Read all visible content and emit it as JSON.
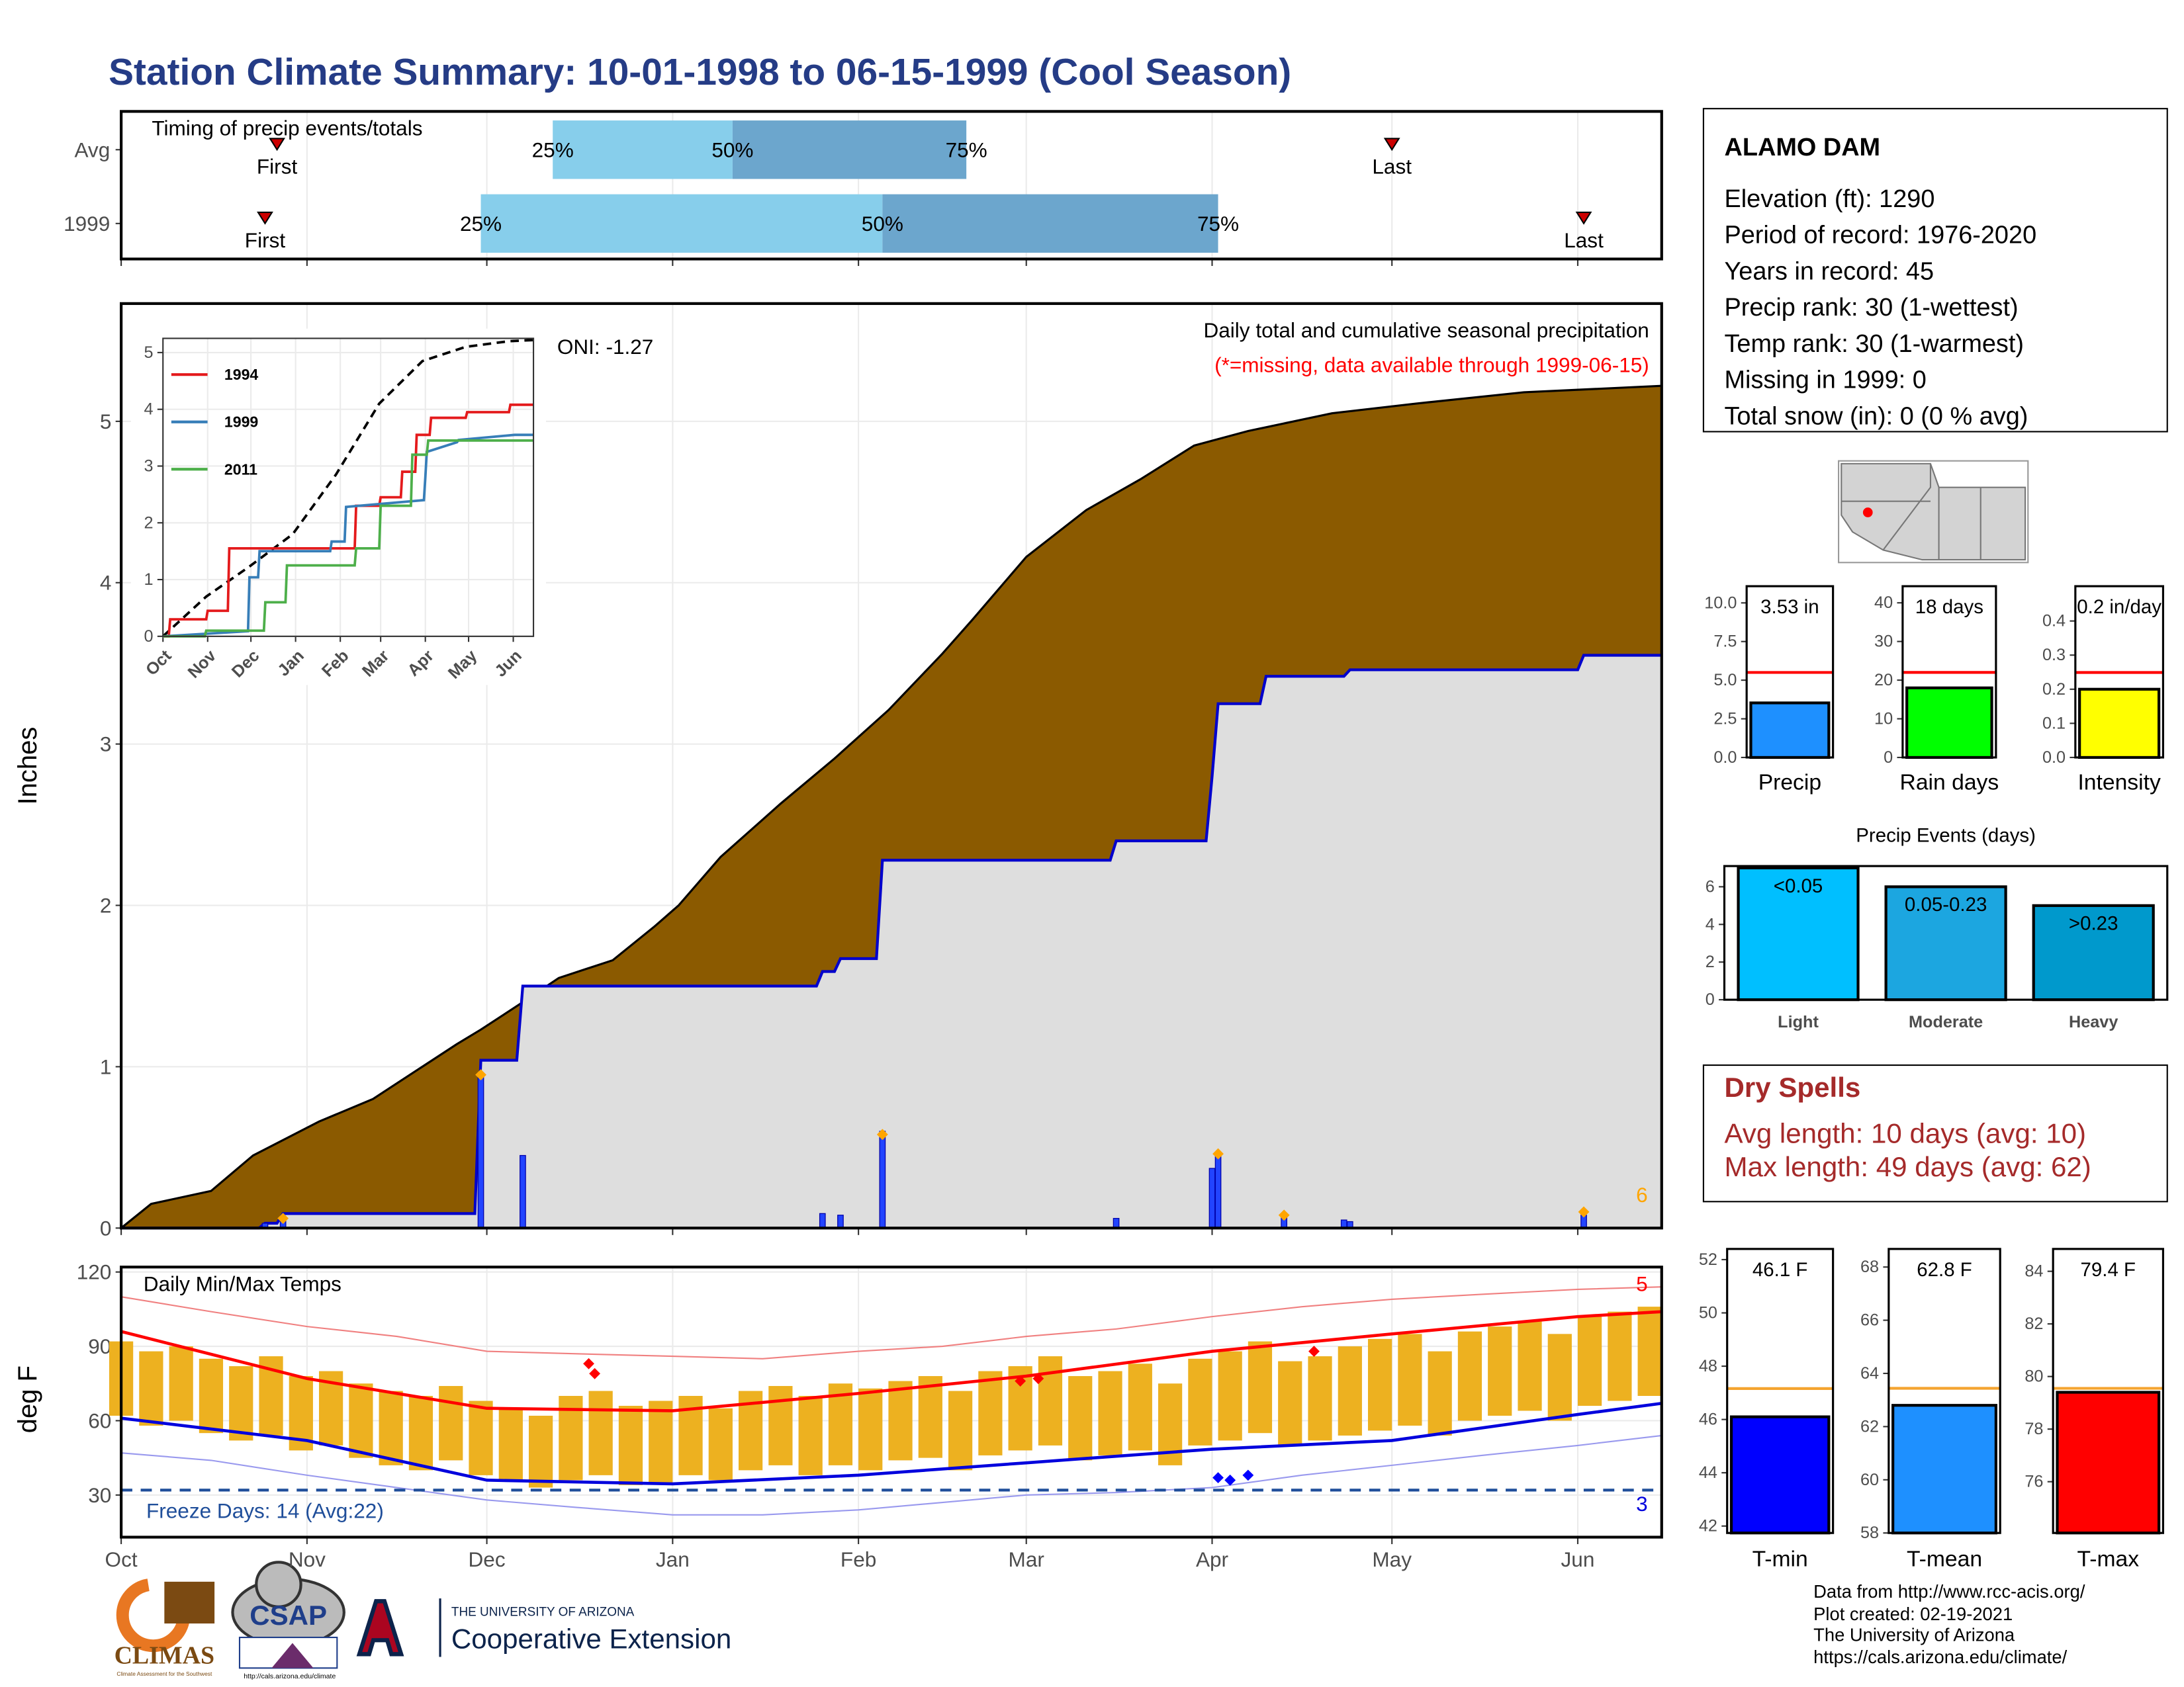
{
  "title": "Station Climate Summary: 10-01-1998 to 06-15-1999 (Cool Season)",
  "chart_data": [
    {
      "type": "timing",
      "title": "Timing of precip events/totals",
      "categories": [
        "Avg",
        "1999"
      ],
      "first": [
        26,
        24
      ],
      "q25": [
        72,
        60
      ],
      "q50": [
        102,
        127
      ],
      "q75": [
        141,
        183
      ],
      "last": [
        212,
        244
      ],
      "point_labels": {
        "first": "First",
        "q25": "25%",
        "q50": "50%",
        "q75": "75%",
        "last": "Last"
      },
      "colors": {
        "lower": "#87CEEB",
        "upper": "#6CA6CD",
        "marker": "#CC0000"
      },
      "xlim": [
        0,
        257
      ],
      "xticks": [
        0,
        31,
        61,
        92,
        123,
        151,
        182,
        212,
        243
      ],
      "grid": true
    },
    {
      "type": "area",
      "title": "Daily total and cumulative seasonal precipitation",
      "subtitle": "(*=missing, data available through 1999-06-15)",
      "annotation": "ONI: -1.27",
      "marker_count": 6,
      "y_label": "Inches",
      "xlim": [
        0,
        257
      ],
      "xticks": [
        0,
        31,
        61,
        92,
        123,
        151,
        182,
        212,
        243
      ],
      "ylim": [
        0,
        5.73
      ],
      "yticks": [
        0,
        1,
        2,
        3,
        4,
        5
      ],
      "grid": true,
      "series": [
        {
          "style": "area",
          "color": "#8B5A00",
          "x": [
            0,
            5,
            15,
            22,
            33,
            42,
            49,
            56,
            60,
            67,
            73,
            82,
            89,
            93,
            100,
            110,
            119,
            128,
            137,
            142,
            151,
            161,
            170,
            179,
            188,
            202,
            216,
            234,
            257
          ],
          "values": [
            0,
            0.15,
            0.23,
            0.45,
            0.66,
            0.8,
            0.97,
            1.14,
            1.23,
            1.4,
            1.55,
            1.66,
            1.87,
            2.0,
            2.3,
            2.63,
            2.91,
            3.21,
            3.56,
            3.77,
            4.16,
            4.45,
            4.64,
            4.85,
            4.94,
            5.05,
            5.11,
            5.18,
            5.22
          ]
        },
        {
          "style": "area_line",
          "color": "#0000CC",
          "fill": "#DEDEDE",
          "exceed_color": "#228B22",
          "x": [
            0,
            23,
            24,
            26,
            27,
            59,
            60,
            66,
            67,
            116,
            117,
            119,
            120,
            126,
            127,
            165,
            166,
            181,
            182,
            183,
            190,
            191,
            204,
            205,
            243,
            244,
            257
          ],
          "values": [
            0,
            0,
            0.03,
            0.03,
            0.09,
            0.09,
            1.04,
            1.04,
            1.5,
            1.5,
            1.59,
            1.59,
            1.67,
            1.67,
            2.28,
            2.28,
            2.4,
            2.4,
            2.8,
            3.25,
            3.25,
            3.42,
            3.42,
            3.46,
            3.46,
            3.55,
            3.55
          ]
        },
        {
          "style": "bars",
          "color": "#2244FF",
          "x": [
            24,
            27,
            60,
            67,
            117,
            120,
            127,
            166,
            182,
            183,
            194,
            204,
            205,
            244
          ],
          "values": [
            0.03,
            0.06,
            0.95,
            0.45,
            0.09,
            0.08,
            0.6,
            0.06,
            0.37,
            0.45,
            0.07,
            0.05,
            0.04,
            0.08
          ]
        },
        {
          "style": "markers",
          "color": "#FFA500",
          "x": [
            27,
            60,
            127,
            183,
            194,
            244
          ],
          "values": [
            0.06,
            0.95,
            0.58,
            0.46,
            0.08,
            0.1
          ]
        }
      ]
    },
    {
      "type": "line",
      "legend": "top-left",
      "xlim": [
        0,
        257
      ],
      "xticks": [
        {
          "value": 0,
          "label": "Oct"
        },
        {
          "value": 31,
          "label": "Nov"
        },
        {
          "value": 61,
          "label": "Dec"
        },
        {
          "value": 92,
          "label": "Jan"
        },
        {
          "value": 123,
          "label": "Feb"
        },
        {
          "value": 151,
          "label": "Mar"
        },
        {
          "value": 182,
          "label": "Apr"
        },
        {
          "value": 212,
          "label": "May"
        },
        {
          "value": 243,
          "label": "Jun"
        }
      ],
      "ylim": [
        0,
        5.25
      ],
      "yticks": [
        0,
        1,
        2,
        3,
        4,
        5
      ],
      "grid": true,
      "series": [
        {
          "dashed": true,
          "color": "#000000",
          "x": [
            0,
            30,
            60,
            90,
            120,
            150,
            180,
            210,
            240,
            257
          ],
          "values": [
            0,
            0.7,
            1.23,
            1.8,
            2.85,
            4.1,
            4.85,
            5.1,
            5.2,
            5.22
          ]
        },
        {
          "name": "1994",
          "color": "#E41A1C",
          "x": [
            0,
            4,
            5,
            30,
            31,
            45,
            46,
            133,
            134,
            150,
            151,
            165,
            166,
            175,
            176,
            185,
            186,
            210,
            211,
            240,
            241,
            257
          ],
          "values": [
            0,
            0,
            0.3,
            0.3,
            0.45,
            0.45,
            1.55,
            1.55,
            2.3,
            2.3,
            2.45,
            2.45,
            2.9,
            2.9,
            3.55,
            3.55,
            3.85,
            3.85,
            3.95,
            3.95,
            4.08,
            4.08
          ]
        },
        {
          "name": "1999",
          "color": "#377EB8",
          "x": [
            0,
            59,
            60,
            66,
            67,
            116,
            117,
            126,
            127,
            181,
            182,
            183,
            204,
            205,
            244,
            257
          ],
          "values": [
            0,
            0.09,
            1.04,
            1.04,
            1.5,
            1.5,
            1.67,
            1.67,
            2.28,
            2.4,
            2.8,
            3.25,
            3.42,
            3.46,
            3.55,
            3.55
          ]
        },
        {
          "name": "2011",
          "color": "#4DAF4A",
          "x": [
            0,
            29,
            30,
            70,
            71,
            85,
            86,
            133,
            134,
            150,
            151,
            172,
            173,
            183,
            184,
            257
          ],
          "values": [
            0,
            0,
            0.1,
            0.1,
            0.6,
            0.6,
            1.25,
            1.25,
            1.55,
            1.55,
            2.3,
            2.3,
            3.2,
            3.2,
            3.45,
            3.45
          ]
        }
      ]
    },
    {
      "type": "range",
      "title": "Daily Min/Max Temps",
      "y_label": "deg F",
      "freeze_threshold": 32,
      "freeze_label": "Freeze Days: 14 (Avg:22)",
      "record_high_count": 5,
      "record_low_count": 3,
      "xlim": [
        0,
        257
      ],
      "xticks": [
        {
          "value": 0,
          "label": "Oct"
        },
        {
          "value": 31,
          "label": "Nov"
        },
        {
          "value": 61,
          "label": "Dec"
        },
        {
          "value": 92,
          "label": "Jan"
        },
        {
          "value": 123,
          "label": "Feb"
        },
        {
          "value": 151,
          "label": "Mar"
        },
        {
          "value": 182,
          "label": "Apr"
        },
        {
          "value": 212,
          "label": "May"
        },
        {
          "value": 243,
          "label": "Jun"
        }
      ],
      "ylim": [
        13,
        122
      ],
      "yticks": [
        30,
        60,
        90,
        120
      ],
      "grid": true,
      "series": [
        {
          "style": "bars",
          "color": "#EDB120",
          "x": [
            0,
            5,
            10,
            15,
            20,
            25,
            30,
            35,
            40,
            45,
            50,
            55,
            60,
            65,
            70,
            75,
            80,
            85,
            90,
            95,
            100,
            105,
            110,
            115,
            120,
            125,
            130,
            135,
            140,
            145,
            150,
            155,
            160,
            165,
            170,
            175,
            180,
            185,
            190,
            195,
            200,
            205,
            210,
            215,
            220,
            225,
            230,
            235,
            240,
            245,
            250,
            255
          ],
          "min": [
            62,
            58,
            60,
            55,
            52,
            54,
            48,
            50,
            45,
            42,
            40,
            44,
            38,
            36,
            33,
            36,
            38,
            34,
            35,
            38,
            36,
            40,
            42,
            38,
            42,
            40,
            44,
            45,
            40,
            46,
            48,
            50,
            44,
            46,
            48,
            42,
            50,
            52,
            55,
            50,
            52,
            54,
            56,
            58,
            54,
            60,
            62,
            64,
            60,
            66,
            68,
            70
          ],
          "max": [
            92,
            88,
            90,
            85,
            82,
            86,
            78,
            80,
            75,
            72,
            70,
            74,
            68,
            65,
            62,
            70,
            72,
            66,
            68,
            70,
            65,
            72,
            74,
            70,
            75,
            73,
            76,
            78,
            72,
            80,
            82,
            86,
            78,
            80,
            83,
            75,
            85,
            88,
            92,
            84,
            86,
            90,
            93,
            95,
            88,
            96,
            98,
            100,
            95,
            102,
            104,
            106
          ]
        },
        {
          "style": "line",
          "color": "#FF0000",
          "x": [
            0,
            31,
            61,
            92,
            123,
            151,
            182,
            212,
            243,
            257
          ],
          "values": [
            96,
            77,
            65,
            64,
            71,
            78,
            88,
            95,
            102,
            104
          ]
        },
        {
          "style": "line",
          "color": "#0000DD",
          "x": [
            0,
            31,
            61,
            92,
            123,
            151,
            182,
            212,
            243,
            257
          ],
          "values": [
            61,
            52,
            36,
            34.5,
            38,
            43,
            48.5,
            52,
            62.5,
            67
          ]
        },
        {
          "style": "thin",
          "color": "#F08080",
          "x": [
            0,
            15,
            31,
            46,
            61,
            76,
            92,
            107,
            123,
            137,
            151,
            166,
            182,
            197,
            212,
            227,
            243,
            257
          ],
          "values": [
            110,
            104,
            98,
            94,
            88,
            87,
            86,
            85,
            88,
            90,
            94,
            97,
            102,
            106,
            109,
            111,
            113,
            114
          ]
        },
        {
          "style": "thin",
          "color": "#9999EE",
          "x": [
            0,
            15,
            31,
            46,
            61,
            76,
            92,
            107,
            123,
            137,
            151,
            166,
            182,
            197,
            212,
            227,
            243,
            257
          ],
          "values": [
            47,
            44,
            38,
            33,
            28,
            25,
            22,
            22,
            24,
            27,
            30,
            31,
            33,
            38,
            42,
            46,
            50,
            54
          ]
        },
        {
          "style": "markers",
          "color": "#FF0000",
          "x": [
            78,
            79,
            150,
            153,
            199
          ],
          "values": [
            83,
            79,
            76,
            77,
            88
          ]
        },
        {
          "style": "markers",
          "color": "#0000FF",
          "x": [
            183,
            185,
            188
          ],
          "values": [
            37,
            36,
            38
          ]
        }
      ]
    },
    {
      "type": "bar",
      "categories": [
        "Precip"
      ],
      "values": [
        3.53
      ],
      "value_labels": [
        "3.53 in"
      ],
      "avg": 5.5,
      "avg_color": "#FF0000",
      "color": "#1E90FF",
      "ylim": [
        0,
        11.08
      ],
      "yticks": [
        {
          "value": 0,
          "label": "0.0"
        },
        {
          "value": 2.5,
          "label": "2.5"
        },
        {
          "value": 5,
          "label": "5.0"
        },
        {
          "value": 7.5,
          "label": "7.5"
        },
        {
          "value": 10,
          "label": "10.0"
        }
      ]
    },
    {
      "type": "bar",
      "categories": [
        "Rain days"
      ],
      "values": [
        18
      ],
      "value_labels": [
        "18 days"
      ],
      "avg": 22,
      "avg_color": "#FF0000",
      "color": "#00FF00",
      "ylim": [
        0,
        44.3
      ],
      "yticks": [
        0,
        10,
        20,
        30,
        40
      ]
    },
    {
      "type": "bar",
      "categories": [
        "Intensity"
      ],
      "values": [
        0.2
      ],
      "value_labels": [
        "0.2 in/day"
      ],
      "avg": 0.249,
      "avg_color": "#FF0000",
      "color": "#FFFF00",
      "ylim": [
        0,
        0.502
      ],
      "yticks": [
        {
          "value": 0,
          "label": "0.0"
        },
        0.1,
        0.2,
        0.3,
        0.4
      ]
    },
    {
      "type": "bar",
      "title": "Precip Events (days)",
      "categories": [
        "Light",
        "Moderate",
        "Heavy"
      ],
      "values": [
        7,
        6,
        5
      ],
      "bar_labels": [
        "<0.05",
        "0.05-0.23",
        ">0.23"
      ],
      "colors": [
        "#00BFFF",
        "#1CA6E0",
        "#0099CC"
      ],
      "ylim": [
        0,
        7.1
      ],
      "yticks": [
        0,
        2,
        4,
        6
      ]
    },
    {
      "type": "bar",
      "categories": [
        "T-min"
      ],
      "values": [
        46.1
      ],
      "value_labels": [
        "46.1 F"
      ],
      "avg": 47.16,
      "avg_color": "#F4A430",
      "color": "#0000FF",
      "ylim": [
        41.74,
        52.4
      ],
      "yticks": [
        42,
        44,
        46,
        48,
        50,
        52
      ]
    },
    {
      "type": "bar",
      "categories": [
        "T-mean"
      ],
      "values": [
        62.8
      ],
      "value_labels": [
        "62.8 F"
      ],
      "avg": 63.44,
      "avg_color": "#F4A430",
      "color": "#1E90FF",
      "ylim": [
        58,
        68.68
      ],
      "yticks": [
        58,
        60,
        62,
        64,
        66,
        68
      ]
    },
    {
      "type": "bar",
      "categories": [
        "T-max"
      ],
      "values": [
        79.4
      ],
      "value_labels": [
        "79.4 F"
      ],
      "avg": 79.55,
      "avg_color": "#F4A430",
      "color": "#FF0000",
      "ylim": [
        74.05,
        84.85
      ],
      "yticks": [
        76,
        78,
        80,
        82,
        84
      ]
    }
  ],
  "info": {
    "station": "ALAMO DAM",
    "lines": [
      "Elevation (ft): 1290",
      "Period of record: 1976-2020",
      "Years in record: 45",
      "Precip rank: 30 (1-wettest)",
      "Temp rank: 30 (1-warmest)",
      "Missing in 1999: 0",
      "Total snow (in): 0 (0 % avg)"
    ]
  },
  "dry_spells": {
    "title": "Dry Spells",
    "lines": [
      "Avg length: 10 days (avg: 10)",
      "Max length: 49 days (avg: 62)"
    ]
  },
  "footer": [
    "Data from http://www.rcc-acis.org/",
    "Plot created: 02-19-2021",
    "The University of Arizona",
    "https://cals.arizona.edu/climate/"
  ],
  "logos": {
    "climas": "CLIMAS",
    "climas_sub": "Climate Assessment for the Southwest",
    "csap": "CSAP",
    "csap_url": "http://cals.arizona.edu/climate",
    "ua": "THE UNIVERSITY OF ARIZONA",
    "coop": "Cooperative Extension"
  }
}
